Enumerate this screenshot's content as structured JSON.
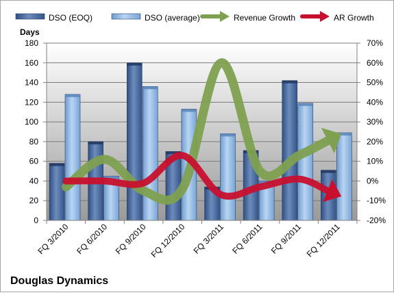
{
  "chart_data": {
    "type": "bar",
    "title": "Douglas Dynamics",
    "ylabel": "Days",
    "categories": [
      "FQ 3/2010",
      "FQ 6/2010",
      "FQ 9/2010",
      "FQ 12/2010",
      "FQ 3/2011",
      "FQ 6/2011",
      "FQ 9/2011",
      "FQ 12/2011"
    ],
    "ylim": [
      0,
      180
    ],
    "y_ticks": [
      "0",
      "20",
      "40",
      "60",
      "80",
      "100",
      "120",
      "140",
      "160",
      "180"
    ],
    "y2lim": [
      -20,
      70
    ],
    "y2_ticks": [
      "-20%",
      "-10%",
      "0%",
      "10%",
      "20%",
      "30%",
      "40%",
      "50%",
      "60%",
      "70%"
    ],
    "grid": true,
    "legend_position": "top",
    "series": [
      {
        "name": "DSO (EOQ)",
        "kind": "bar",
        "axis": "left",
        "color": "#4f6fa0",
        "values": [
          58,
          80,
          160,
          70,
          34,
          71,
          142,
          51
        ]
      },
      {
        "name": "DSO (average)",
        "kind": "bar",
        "axis": "left",
        "color": "#8cb4e0",
        "values": [
          128,
          45,
          136,
          113,
          88,
          40,
          119,
          89
        ]
      },
      {
        "name": "Revenue Growth",
        "kind": "line",
        "axis": "right",
        "color": "#7ea050",
        "values": [
          -3,
          11,
          -5,
          -4,
          60,
          5,
          13,
          23
        ]
      },
      {
        "name": "AR Growth",
        "kind": "line",
        "axis": "right",
        "color": "#c8102e",
        "values": [
          0,
          0,
          -1,
          13,
          -7,
          -3,
          1,
          -7
        ]
      }
    ]
  }
}
